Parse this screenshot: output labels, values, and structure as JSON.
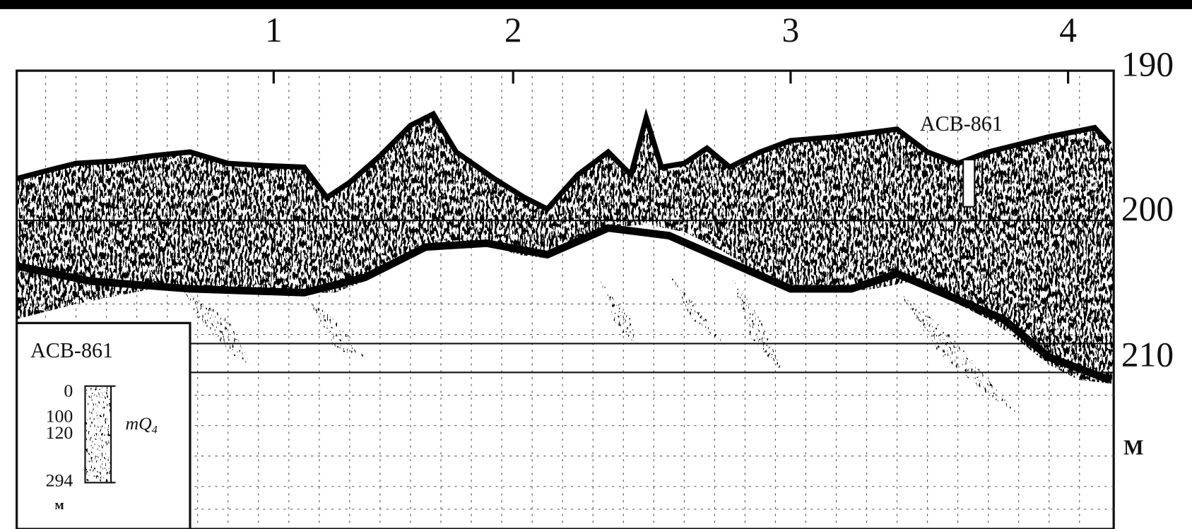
{
  "profile_marks": [
    "1",
    "2",
    "3",
    "4"
  ],
  "depth_scale": {
    "ticks": [
      190,
      200,
      210
    ],
    "unit": "M"
  },
  "core_label": "ACB-861",
  "legend": {
    "title": "ACB-861",
    "depths": [
      0,
      100,
      120,
      294
    ],
    "depth_unit": "м",
    "unit_label": {
      "text": "mQ",
      "subscript": "4"
    }
  }
}
